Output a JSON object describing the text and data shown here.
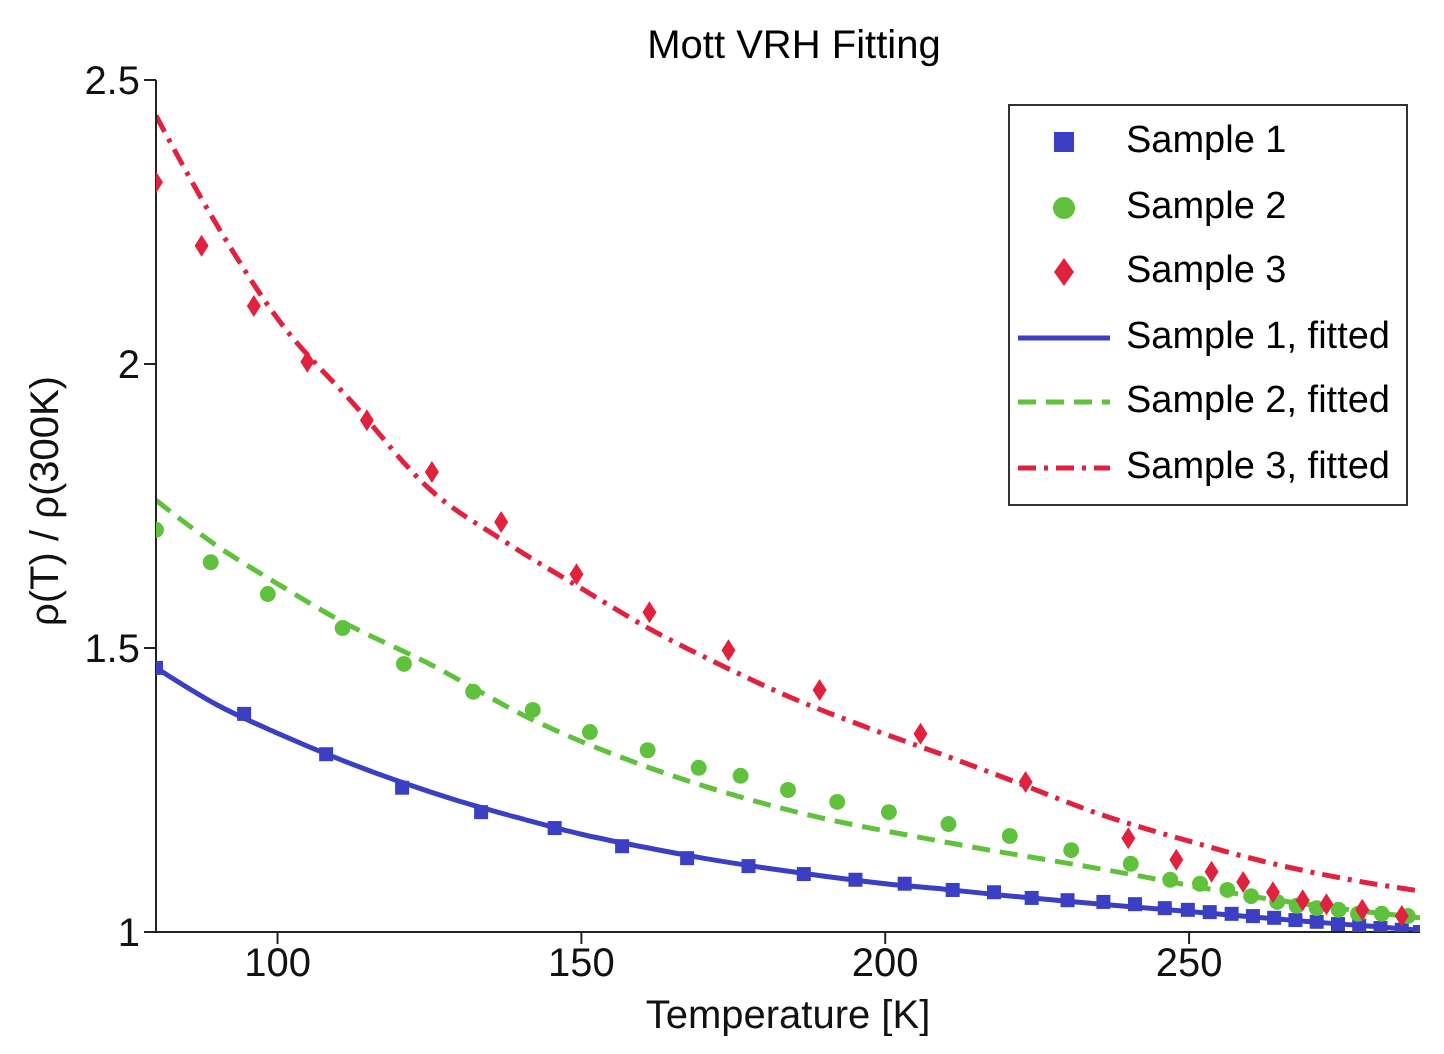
{
  "chart_data": {
    "type": "scatter",
    "title": "Mott VRH Fitting",
    "xlabel": "Temperature [K]",
    "ylabel": "ρ(T) / ρ(300K)",
    "xlim": [
      80,
      288
    ],
    "ylim": [
      1,
      2.5
    ],
    "xticks": [
      100,
      150,
      200,
      250
    ],
    "yticks": [
      1,
      1.5,
      2,
      2.5
    ],
    "grid": false,
    "legend": "top right",
    "series": [
      {
        "name": "Sample 1",
        "marker": "square",
        "color": "#3a3fc4",
        "x": [
          80,
          94.5,
          108,
          120.5,
          133.5,
          145.6,
          156.7,
          167.4,
          177.5,
          186.6,
          195.1,
          203.2,
          211.1,
          217.9,
          224.1,
          230,
          235.9,
          241.1,
          246,
          249.8,
          253.4,
          257,
          260.5,
          264,
          267.5,
          271,
          274.5,
          278,
          281.5,
          285,
          288
        ],
        "values": [
          1.465,
          1.384,
          1.313,
          1.254,
          1.211,
          1.183,
          1.151,
          1.13,
          1.116,
          1.102,
          1.092,
          1.085,
          1.074,
          1.07,
          1.06,
          1.056,
          1.053,
          1.049,
          1.042,
          1.039,
          1.035,
          1.032,
          1.028,
          1.025,
          1.021,
          1.018,
          1.014,
          1.011,
          1.007,
          1.004,
          1.0
        ]
      },
      {
        "name": "Sample 2",
        "marker": "circle",
        "color": "#5fc13c",
        "x": [
          80,
          89,
          98.4,
          110.7,
          120.8,
          132.2,
          142,
          151.4,
          160.9,
          169.3,
          176.2,
          184,
          192.1,
          200.6,
          210.4,
          220.5,
          230.6,
          240.4,
          246.9,
          251.8,
          256.3,
          260.2,
          264.5,
          267.7,
          271,
          274.6,
          277.8,
          281.7,
          286
        ],
        "values": [
          1.708,
          1.651,
          1.595,
          1.535,
          1.472,
          1.423,
          1.391,
          1.352,
          1.32,
          1.289,
          1.275,
          1.25,
          1.229,
          1.211,
          1.19,
          1.169,
          1.144,
          1.12,
          1.092,
          1.085,
          1.074,
          1.063,
          1.053,
          1.046,
          1.042,
          1.039,
          1.032,
          1.032,
          1.028
        ]
      },
      {
        "name": "Sample 3",
        "marker": "diamond",
        "color": "#e0223f",
        "x": [
          80,
          87.5,
          96.1,
          104.9,
          114.7,
          125.4,
          136.8,
          149.2,
          161.2,
          174.2,
          189.2,
          205.8,
          223.1,
          240,
          247.9,
          253.7,
          258.9,
          263.8,
          268.7,
          272.6,
          278.5,
          285
        ],
        "values": [
          2.32,
          2.208,
          2.102,
          2.004,
          1.901,
          1.81,
          1.722,
          1.63,
          1.563,
          1.496,
          1.426,
          1.349,
          1.264,
          1.165,
          1.127,
          1.106,
          1.088,
          1.07,
          1.056,
          1.049,
          1.039,
          1.028
        ]
      },
      {
        "name": "Sample 1, fitted",
        "type": "line",
        "line_style": "solid",
        "color": "#3a3fc4",
        "x": [
          80,
          90,
          100,
          110,
          120,
          130,
          140,
          150,
          160,
          170,
          180,
          190,
          200,
          210,
          220,
          230,
          240,
          250,
          260,
          270,
          280,
          288
        ],
        "values": [
          1.465,
          1.4,
          1.35,
          1.305,
          1.265,
          1.23,
          1.2,
          1.172,
          1.15,
          1.13,
          1.113,
          1.098,
          1.085,
          1.075,
          1.064,
          1.054,
          1.045,
          1.036,
          1.027,
          1.018,
          1.01,
          1.003
        ]
      },
      {
        "name": "Sample 2, fitted",
        "type": "line",
        "line_style": "dashed",
        "color": "#5fc13c",
        "x": [
          80,
          90,
          100,
          110,
          125,
          141.7,
          161,
          184,
          210,
          236,
          262,
          288
        ],
        "values": [
          1.76,
          1.68,
          1.613,
          1.55,
          1.472,
          1.375,
          1.29,
          1.215,
          1.158,
          1.11,
          1.06,
          1.025
        ]
      },
      {
        "name": "Sample 3, fitted",
        "type": "line",
        "line_style": "dashdot",
        "color": "#e0223f",
        "x": [
          80,
          90,
          100,
          112.5,
          125,
          137,
          150,
          161,
          172,
          184,
          197,
          210,
          220,
          236,
          250,
          262,
          275,
          288
        ],
        "values": [
          2.437,
          2.245,
          2.08,
          1.93,
          1.78,
          1.69,
          1.605,
          1.535,
          1.475,
          1.415,
          1.36,
          1.31,
          1.27,
          1.205,
          1.16,
          1.125,
          1.095,
          1.072
        ]
      }
    ]
  }
}
